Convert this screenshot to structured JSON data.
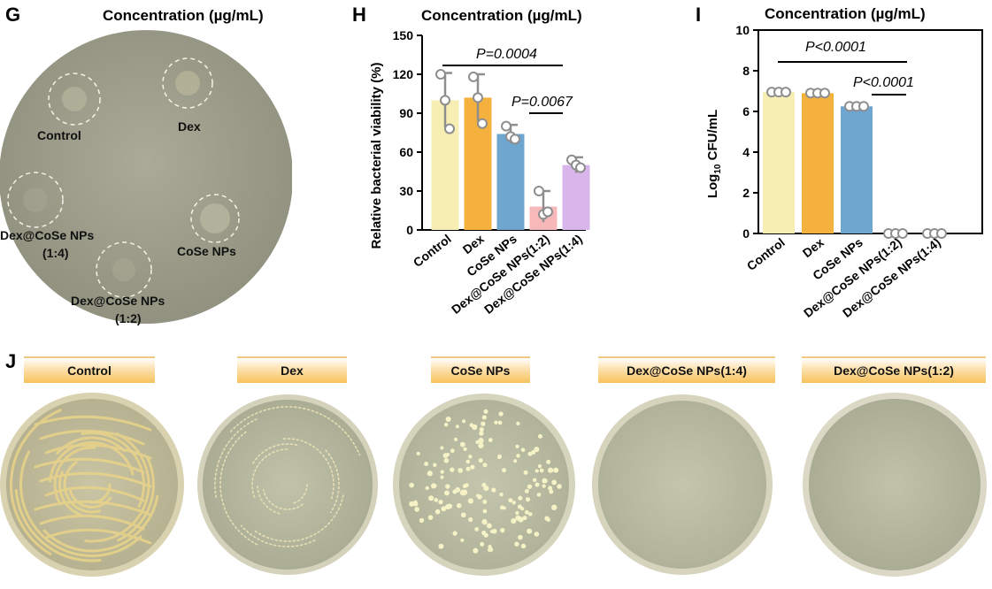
{
  "panel_g": {
    "letter": "G",
    "title": "Concentration (µg/mL)",
    "labels": {
      "control": "Control",
      "dex": "Dex",
      "dex_cose_14_line1": "Dex@CoSe NPs",
      "dex_cose_14_line2": "(1:4)",
      "cose": "CoSe NPs",
      "dex_cose_12_line1": "Dex@CoSe NPs",
      "dex_cose_12_line2": "(1:2)"
    }
  },
  "panel_h": {
    "letter": "H",
    "title": "Concentration (µg/mL)",
    "p_values": [
      "P=0.0004",
      "P=0.0067"
    ]
  },
  "panel_i": {
    "letter": "I",
    "title": "Concentration (µg/mL)",
    "p_values": [
      "P<0.0001",
      "P<0.0001"
    ]
  },
  "panel_j": {
    "letter": "J",
    "headers": [
      "Control",
      "Dex",
      "CoSe NPs",
      "Dex@CoSe NPs(1:4)",
      "Dex@CoSe NPs(1:2)"
    ]
  },
  "chart_data": [
    {
      "type": "bar",
      "title": "Concentration (µg/mL)",
      "categories": [
        "Control",
        "Dex",
        "CoSe NPs",
        "Dex@CoSe NPs(1:2)",
        "Dex@CoSe NPs(1:4)"
      ],
      "values": [
        100,
        102,
        74,
        18,
        50
      ],
      "error_bars": [
        21,
        18,
        7,
        12,
        6
      ],
      "points": [
        [
          120,
          100,
          78
        ],
        [
          118,
          102,
          82
        ],
        [
          80,
          72,
          70
        ],
        [
          30,
          12,
          14
        ],
        [
          54,
          50,
          48
        ]
      ],
      "colors": [
        "#f6eeb2",
        "#f4b13d",
        "#6fa6d0",
        "#f6b8b8",
        "#d8b6ec"
      ],
      "ylabel": "Relative bacterial viability (%)",
      "yticks": [
        0,
        30,
        60,
        90,
        120,
        150
      ],
      "ylim": [
        0,
        150
      ]
    },
    {
      "type": "bar",
      "title": "Concentration (µg/mL)",
      "categories": [
        "Control",
        "Dex",
        "CoSe NPs",
        "Dex@CoSe NPs(1:2)",
        "Dex@CoSe NPs(1:4)"
      ],
      "values": [
        6.95,
        6.9,
        6.25,
        0,
        0
      ],
      "points": [
        [
          6.95,
          6.95,
          6.95
        ],
        [
          6.9,
          6.9,
          6.9
        ],
        [
          6.25,
          6.25,
          6.25
        ],
        [
          0,
          0,
          0
        ],
        [
          0,
          0,
          0
        ]
      ],
      "colors": [
        "#f6eeb2",
        "#f4b13d",
        "#6fa6d0",
        "#f6b8b8",
        "#d8b6ec"
      ],
      "ylabel": "Log10 CFU/mL",
      "ylabel_main": "Log",
      "ylabel_sub": "10",
      "ylabel_rest": " CFU/mL",
      "yticks": [
        0,
        2,
        4,
        6,
        8,
        10
      ],
      "ylim": [
        0,
        10
      ]
    }
  ]
}
